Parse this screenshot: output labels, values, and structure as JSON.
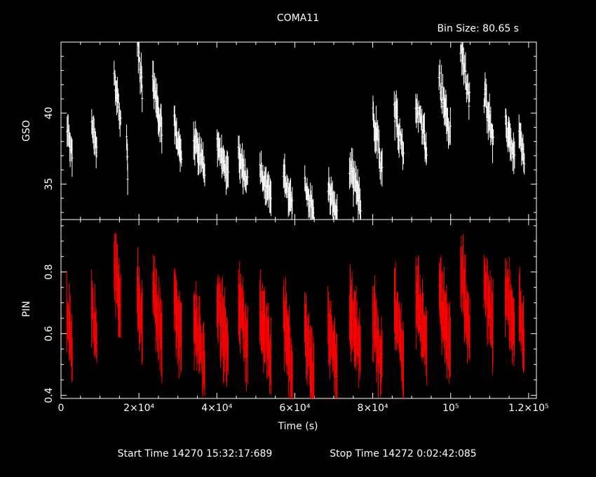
{
  "title": "COMA11",
  "bin_size_label": "Bin Size:  80.65  s",
  "footer": {
    "start_label": "Start Time  14270  15:32:17:689",
    "stop_label": "Stop Time  14272   0:02:42:085"
  },
  "chart_data": [
    {
      "type": "scatter",
      "panel": "top",
      "ylabel": "GSO",
      "color": "#ffffff",
      "xlim": [
        0,
        122000
      ],
      "ylim": [
        32.5,
        45
      ],
      "yticks": [
        35,
        40
      ],
      "segments": [
        {
          "x0": 1500,
          "x1": 3000,
          "ymean": 37.8,
          "amp": 1.2
        },
        {
          "x0": 7800,
          "x1": 9300,
          "ymean": 38.3,
          "amp": 1.3
        },
        {
          "x0": 13600,
          "x1": 15400,
          "ymean": 41.0,
          "amp": 2.2
        },
        {
          "x0": 16800,
          "x1": 17200,
          "ymean": 36.5,
          "amp": 1.8
        },
        {
          "x0": 19500,
          "x1": 21000,
          "ymean": 43.0,
          "amp": 2.2
        },
        {
          "x0": 23500,
          "x1": 26000,
          "ymean": 40.5,
          "amp": 2.0
        },
        {
          "x0": 29000,
          "x1": 31000,
          "ymean": 38.0,
          "amp": 1.4
        },
        {
          "x0": 34000,
          "x1": 37000,
          "ymean": 37.0,
          "amp": 1.3
        },
        {
          "x0": 40000,
          "x1": 43000,
          "ymean": 36.6,
          "amp": 1.3
        },
        {
          "x0": 45500,
          "x1": 48000,
          "ymean": 36.0,
          "amp": 1.4
        },
        {
          "x0": 51000,
          "x1": 54000,
          "ymean": 35.0,
          "amp": 1.3
        },
        {
          "x0": 57000,
          "x1": 59500,
          "ymean": 34.3,
          "amp": 1.4
        },
        {
          "x0": 62500,
          "x1": 65000,
          "ymean": 33.8,
          "amp": 1.4
        },
        {
          "x0": 68500,
          "x1": 71000,
          "ymean": 33.6,
          "amp": 1.3
        },
        {
          "x0": 74000,
          "x1": 77000,
          "ymean": 34.8,
          "amp": 1.6
        },
        {
          "x0": 80000,
          "x1": 82500,
          "ymean": 37.8,
          "amp": 2.6
        },
        {
          "x0": 85500,
          "x1": 88000,
          "ymean": 38.6,
          "amp": 2.0
        },
        {
          "x0": 91000,
          "x1": 94000,
          "ymean": 39.0,
          "amp": 1.8
        },
        {
          "x0": 97000,
          "x1": 100000,
          "ymean": 40.2,
          "amp": 2.4
        },
        {
          "x0": 102500,
          "x1": 105000,
          "ymean": 42.5,
          "amp": 2.6
        },
        {
          "x0": 108500,
          "x1": 111000,
          "ymean": 39.5,
          "amp": 2.0
        },
        {
          "x0": 114000,
          "x1": 116500,
          "ymean": 38.0,
          "amp": 1.4
        },
        {
          "x0": 117500,
          "x1": 119000,
          "ymean": 37.5,
          "amp": 1.2
        }
      ]
    },
    {
      "type": "scatter",
      "panel": "bottom",
      "ylabel": "PIN",
      "xlabel": "Time (s)",
      "color": "#ff0000",
      "xlim": [
        0,
        122000
      ],
      "ylim": [
        0.39,
        0.97
      ],
      "yticks": [
        0.4,
        0.6,
        0.8
      ],
      "xticks": [
        {
          "value": 0,
          "label": "0"
        },
        {
          "value": 20000,
          "label": "2×10⁴"
        },
        {
          "value": 40000,
          "label": "4×10⁴"
        },
        {
          "value": 60000,
          "label": "6×10⁴"
        },
        {
          "value": 80000,
          "label": "8×10⁴"
        },
        {
          "value": 100000,
          "label": "10⁵"
        },
        {
          "value": 120000,
          "label": "1.2×10⁵"
        }
      ],
      "segments": [
        {
          "x0": 1500,
          "x1": 3000,
          "ymean": 0.6,
          "amp": 0.09
        },
        {
          "x0": 7800,
          "x1": 9300,
          "ymean": 0.62,
          "amp": 0.09
        },
        {
          "x0": 13600,
          "x1": 15400,
          "ymean": 0.74,
          "amp": 0.12
        },
        {
          "x0": 19500,
          "x1": 21000,
          "ymean": 0.66,
          "amp": 0.1
        },
        {
          "x0": 23500,
          "x1": 26000,
          "ymean": 0.66,
          "amp": 0.1
        },
        {
          "x0": 29000,
          "x1": 31000,
          "ymean": 0.64,
          "amp": 0.1
        },
        {
          "x0": 34000,
          "x1": 37000,
          "ymean": 0.57,
          "amp": 0.09
        },
        {
          "x0": 40000,
          "x1": 43000,
          "ymean": 0.61,
          "amp": 0.1
        },
        {
          "x0": 45500,
          "x1": 48000,
          "ymean": 0.62,
          "amp": 0.1
        },
        {
          "x0": 51000,
          "x1": 54000,
          "ymean": 0.58,
          "amp": 0.1
        },
        {
          "x0": 57000,
          "x1": 59500,
          "ymean": 0.55,
          "amp": 0.12
        },
        {
          "x0": 62500,
          "x1": 65000,
          "ymean": 0.53,
          "amp": 0.1
        },
        {
          "x0": 68500,
          "x1": 71000,
          "ymean": 0.55,
          "amp": 0.1
        },
        {
          "x0": 74000,
          "x1": 77000,
          "ymean": 0.6,
          "amp": 0.1
        },
        {
          "x0": 80000,
          "x1": 82500,
          "ymean": 0.57,
          "amp": 0.1
        },
        {
          "x0": 85500,
          "x1": 88000,
          "ymean": 0.6,
          "amp": 0.1
        },
        {
          "x0": 91000,
          "x1": 94000,
          "ymean": 0.64,
          "amp": 0.1
        },
        {
          "x0": 97000,
          "x1": 100000,
          "ymean": 0.63,
          "amp": 0.1
        },
        {
          "x0": 102500,
          "x1": 105000,
          "ymean": 0.7,
          "amp": 0.12
        },
        {
          "x0": 108500,
          "x1": 111000,
          "ymean": 0.68,
          "amp": 0.1
        },
        {
          "x0": 114000,
          "x1": 116500,
          "ymean": 0.66,
          "amp": 0.1
        },
        {
          "x0": 117500,
          "x1": 119000,
          "ymean": 0.64,
          "amp": 0.09
        }
      ]
    }
  ]
}
